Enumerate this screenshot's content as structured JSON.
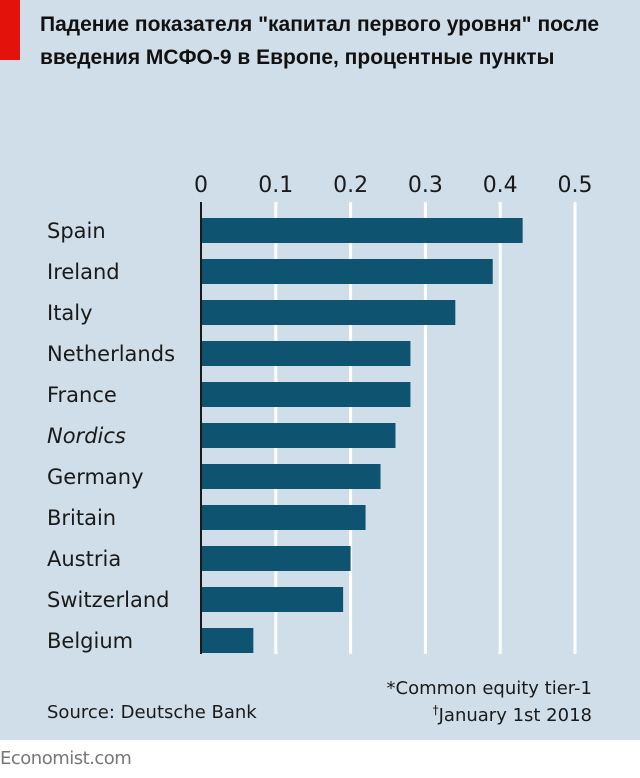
{
  "title": "Падение показателя \"капитал первого уровня\" после введения МСФО-9 в Европе, процентные пункты",
  "colors": {
    "background": "#cfdee8",
    "bar": "#0e5470",
    "accent": "#e3120b",
    "gridline": "#ffffff"
  },
  "chart_data": {
    "type": "bar",
    "orientation": "horizontal",
    "title": "Падение показателя \"капитал первого уровня\" после введения МСФО-9 в Европе, процентные пункты",
    "categories": [
      "Spain",
      "Ireland",
      "Italy",
      "Netherlands",
      "France",
      "Nordics",
      "Germany",
      "Britain",
      "Austria",
      "Switzerland",
      "Belgium"
    ],
    "italic_categories": [
      "Nordics"
    ],
    "values": [
      0.43,
      0.39,
      0.34,
      0.28,
      0.28,
      0.26,
      0.24,
      0.22,
      0.2,
      0.19,
      0.07
    ],
    "xlim": [
      0,
      0.5
    ],
    "xticks": [
      "0",
      "0.1",
      "0.2",
      "0.3",
      "0.4",
      "0.5"
    ],
    "xaxis_position": "top",
    "grid": true
  },
  "footer": {
    "source": "Source: Deutsche Bank",
    "note1": "*Common equity tier-1",
    "note2_mark": "†",
    "note2": "January 1st 2018"
  },
  "brand": "Economist.com"
}
